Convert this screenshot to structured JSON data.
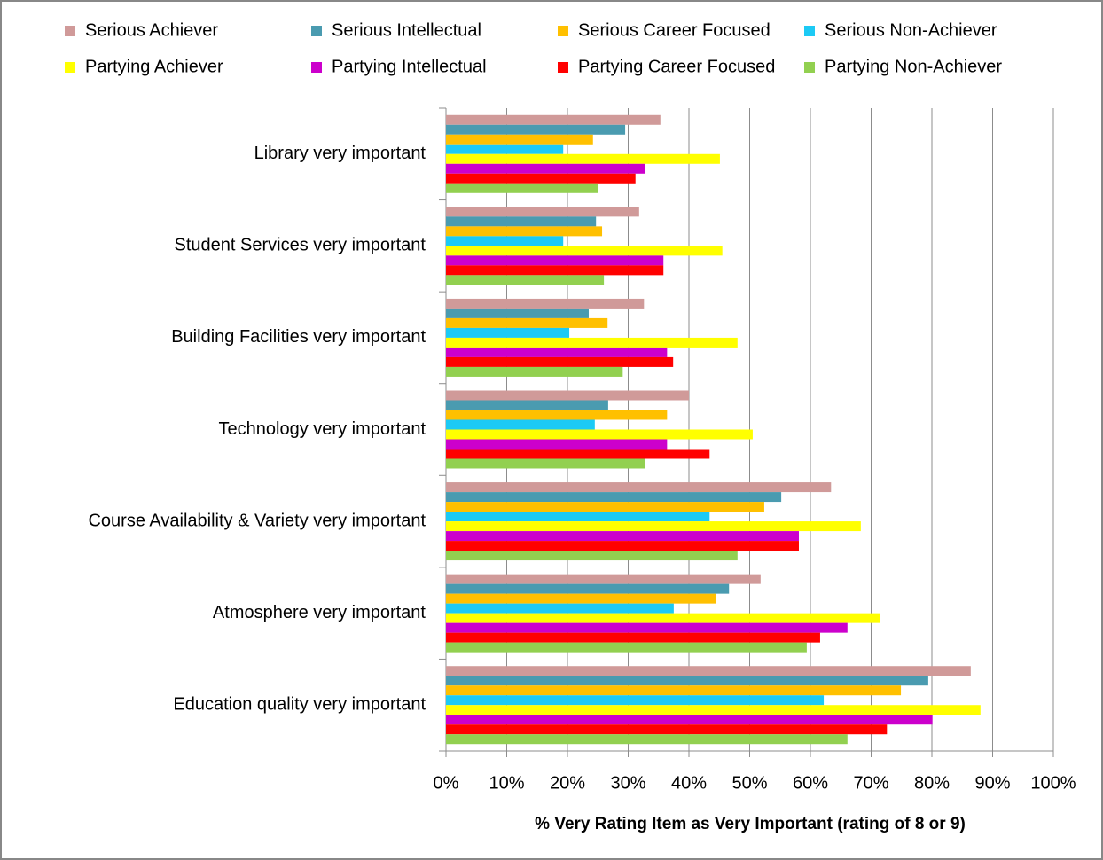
{
  "chart_data": {
    "type": "hbar",
    "x_label": "% Very Rating Item as Very Important (rating of 8 or 9)",
    "categories": [
      "Library very important",
      "Student Services very important",
      "Building Facilities  very important",
      "Technology very important",
      "Course Availability & Variety very important",
      "Atmosphere very important",
      "Education quality very important"
    ],
    "series": [
      {
        "name": "Serious Achiever",
        "color": "#d09a99",
        "values": [
          35.3,
          31.8,
          32.6,
          40.0,
          63.4,
          51.8,
          86.4
        ]
      },
      {
        "name": "Serious Intellectual",
        "color": "#4a9bb0",
        "values": [
          29.5,
          24.7,
          23.5,
          26.7,
          55.2,
          46.6,
          79.4
        ]
      },
      {
        "name": "Serious Career Focused",
        "color": "#ffc000",
        "values": [
          24.2,
          25.7,
          26.6,
          36.4,
          52.4,
          44.5,
          74.9
        ]
      },
      {
        "name": "Serious Non-Achiever",
        "color": "#1ccaf5",
        "values": [
          19.3,
          19.3,
          20.3,
          24.5,
          43.4,
          37.5,
          62.2
        ]
      },
      {
        "name": "Partying Achiever",
        "color": "#ffff00",
        "values": [
          45.1,
          45.5,
          48.0,
          50.5,
          68.3,
          71.4,
          88.0
        ]
      },
      {
        "name": "Partying Intellectual",
        "color": "#cc00cc",
        "values": [
          32.8,
          35.8,
          36.4,
          36.4,
          58.1,
          66.1,
          80.1
        ]
      },
      {
        "name": "Partying Career Focused",
        "color": "#ff0000",
        "values": [
          31.2,
          35.8,
          37.4,
          43.4,
          58.1,
          61.6,
          72.6
        ]
      },
      {
        "name": "Partying Non-Achiever",
        "color": "#92d050",
        "values": [
          25.0,
          26.0,
          29.1,
          32.8,
          48.0,
          59.4,
          66.1
        ]
      }
    ],
    "xlim": [
      0,
      100
    ],
    "xticks": [
      {
        "value": 0,
        "label": "0%"
      },
      {
        "value": 10,
        "label": "10%"
      },
      {
        "value": 20,
        "label": "20%"
      },
      {
        "value": 30,
        "label": "30%"
      },
      {
        "value": 40,
        "label": "40%"
      },
      {
        "value": 50,
        "label": "50%"
      },
      {
        "value": 60,
        "label": "60%"
      },
      {
        "value": 70,
        "label": "70%"
      },
      {
        "value": 80,
        "label": "80%"
      },
      {
        "value": 90,
        "label": "90%"
      },
      {
        "value": 100,
        "label": "100%"
      }
    ],
    "grid": true,
    "legend": "top"
  }
}
